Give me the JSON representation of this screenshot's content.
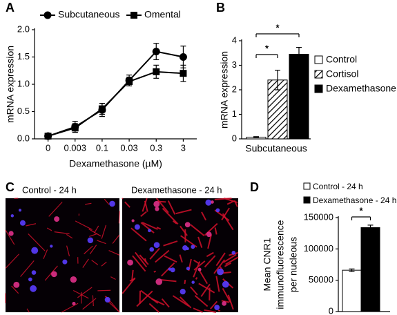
{
  "chart_data": [
    {
      "type": "line",
      "panel": "A",
      "xlabel": "Dexamethasone (µM)",
      "ylabel": "mRNA expression",
      "categories": [
        "0",
        "0.003",
        "0.1",
        "0.03",
        "0.3",
        "3"
      ],
      "series": [
        {
          "name": "Subcutaneous",
          "color": "#000000",
          "marker": "circle",
          "values": [
            0.05,
            0.22,
            0.53,
            1.07,
            1.6,
            1.5
          ],
          "errors": [
            0.03,
            0.1,
            0.12,
            0.1,
            0.15,
            0.2
          ]
        },
        {
          "name": "Omental",
          "color": "#000000",
          "marker": "square",
          "values": [
            0.05,
            0.2,
            0.55,
            1.05,
            1.23,
            1.2
          ],
          "errors": [
            0.02,
            0.08,
            0.1,
            0.08,
            0.12,
            0.15
          ]
        }
      ],
      "ylim": [
        0,
        2
      ],
      "yticks": [
        {
          "value": 0,
          "label": "0.0"
        },
        {
          "value": 0.5,
          "label": "0.5"
        },
        {
          "value": 1,
          "label": "1.0"
        },
        {
          "value": 1.5,
          "label": "1.5"
        },
        {
          "value": 2,
          "label": "2.0"
        }
      ]
    },
    {
      "type": "bar",
      "panel": "B",
      "ylabel": "mRNA expression",
      "categories": [
        "Subcutaneous"
      ],
      "series": [
        {
          "name": "Control",
          "color": "#ffffff",
          "values": [
            0.07
          ],
          "errors": [
            0.02
          ]
        },
        {
          "name": "Cortisol",
          "color": "#ffffff",
          "hatch": true,
          "values": [
            2.4
          ],
          "errors": [
            0.4
          ]
        },
        {
          "name": "Dexamethasone",
          "color": "#000000",
          "values": [
            3.45
          ],
          "errors": [
            0.28
          ]
        }
      ],
      "significance": [
        "*",
        "*"
      ],
      "ylim": [
        0,
        4
      ],
      "yticks": [
        0,
        1,
        2,
        3,
        4
      ]
    },
    {
      "type": "image",
      "panel": "C",
      "panels": [
        "Control - 24 h",
        "Dexamethasone - 24 h"
      ]
    },
    {
      "type": "bar",
      "panel": "D",
      "ylabel": [
        "Mean CNR1",
        "immunofluorescence",
        "per nucleous"
      ],
      "series": [
        {
          "name": "Control - 24 h",
          "color": "#ffffff",
          "values": [
            66000
          ],
          "errors": [
            2000
          ]
        },
        {
          "name": "Dexamethasone - 24 h",
          "color": "#000000",
          "values": [
            134000
          ],
          "errors": [
            4000
          ]
        }
      ],
      "significance": [
        "*"
      ],
      "ylim": [
        0,
        150000
      ],
      "yticks": [
        0,
        50000,
        100000,
        150000
      ]
    }
  ]
}
